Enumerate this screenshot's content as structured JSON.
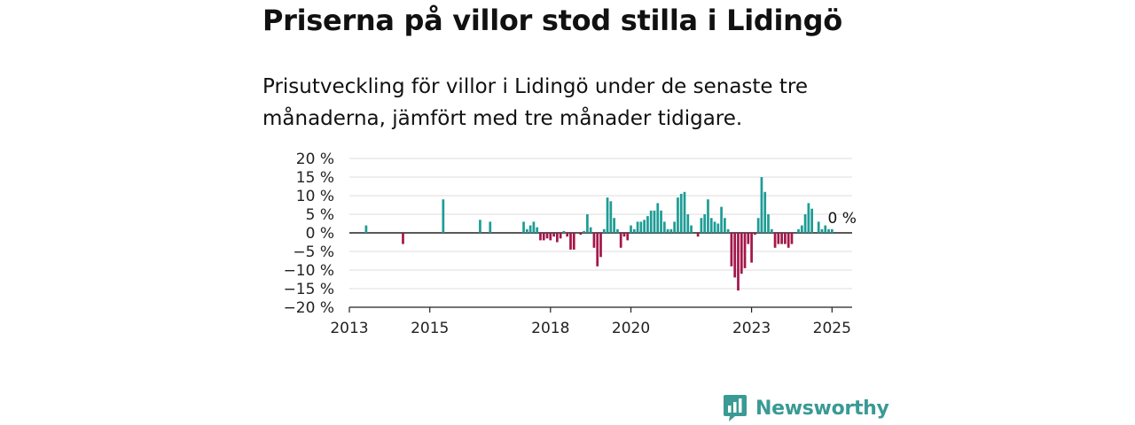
{
  "title": "Priserna på villor stod stilla i Lidingö",
  "subtitle": "Prisutveckling för villor i Lidingö under de senaste tre månaderna, jämfört med tre månader tidigare.",
  "brand": {
    "name": "Newsworthy",
    "color": "#3a9a94"
  },
  "colors": {
    "positive": "#1e9c96",
    "negative": "#a3174a",
    "grid": "#dddddd",
    "zero": "#222222"
  },
  "chart_data": {
    "type": "bar",
    "ylim": [
      -20,
      20
    ],
    "y_ticks": [
      20,
      15,
      10,
      5,
      0,
      -5,
      -10,
      -15,
      -20
    ],
    "y_tick_labels": [
      "20 %",
      "15 %",
      "10 %",
      "5 %",
      "0 %",
      "−5 %",
      "−10 %",
      "−15 %",
      "−20 %"
    ],
    "x_range": [
      "2013-01",
      "2025-07"
    ],
    "x_ticks": [
      "2013-01",
      "2015-01",
      "2018-01",
      "2020-01",
      "2023-01",
      "2025-01"
    ],
    "x_tick_labels": [
      "2013",
      "2015",
      "2018",
      "2020",
      "2023",
      "2025"
    ],
    "end_label": "0 %",
    "end_label_month": "2025-04",
    "bars": [
      {
        "month": "2013-06",
        "value": 2
      },
      {
        "month": "2014-05",
        "value": -3
      },
      {
        "month": "2015-05",
        "value": 9
      },
      {
        "month": "2016-04",
        "value": 3.5
      },
      {
        "month": "2016-07",
        "value": 3
      },
      {
        "month": "2017-05",
        "value": 3
      },
      {
        "month": "2017-06",
        "value": 1
      },
      {
        "month": "2017-07",
        "value": 2
      },
      {
        "month": "2017-08",
        "value": 3
      },
      {
        "month": "2017-09",
        "value": 1.5
      },
      {
        "month": "2017-10",
        "value": -2
      },
      {
        "month": "2017-11",
        "value": -2
      },
      {
        "month": "2017-12",
        "value": -1.5
      },
      {
        "month": "2018-01",
        "value": -2
      },
      {
        "month": "2018-02",
        "value": -1
      },
      {
        "month": "2018-03",
        "value": -2.5
      },
      {
        "month": "2018-04",
        "value": -1.5
      },
      {
        "month": "2018-05",
        "value": 0.5
      },
      {
        "month": "2018-06",
        "value": -1
      },
      {
        "month": "2018-07",
        "value": -4.5
      },
      {
        "month": "2018-08",
        "value": -4.5
      },
      {
        "month": "2018-09",
        "value": 0
      },
      {
        "month": "2018-10",
        "value": -0.5
      },
      {
        "month": "2018-11",
        "value": 0.5
      },
      {
        "month": "2018-12",
        "value": 5
      },
      {
        "month": "2019-01",
        "value": 1.5
      },
      {
        "month": "2019-02",
        "value": -4
      },
      {
        "month": "2019-03",
        "value": -9
      },
      {
        "month": "2019-04",
        "value": -6.5
      },
      {
        "month": "2019-05",
        "value": 1
      },
      {
        "month": "2019-06",
        "value": 9.5
      },
      {
        "month": "2019-07",
        "value": 8.5
      },
      {
        "month": "2019-08",
        "value": 4
      },
      {
        "month": "2019-09",
        "value": 1
      },
      {
        "month": "2019-10",
        "value": -4
      },
      {
        "month": "2019-11",
        "value": -1
      },
      {
        "month": "2019-12",
        "value": -2
      },
      {
        "month": "2020-01",
        "value": 2
      },
      {
        "month": "2020-02",
        "value": 1
      },
      {
        "month": "2020-03",
        "value": 3
      },
      {
        "month": "2020-04",
        "value": 3
      },
      {
        "month": "2020-05",
        "value": 3.5
      },
      {
        "month": "2020-06",
        "value": 4.5
      },
      {
        "month": "2020-07",
        "value": 6
      },
      {
        "month": "2020-08",
        "value": 6
      },
      {
        "month": "2020-09",
        "value": 8
      },
      {
        "month": "2020-10",
        "value": 6
      },
      {
        "month": "2020-11",
        "value": 3
      },
      {
        "month": "2020-12",
        "value": 1
      },
      {
        "month": "2021-01",
        "value": 1
      },
      {
        "month": "2021-02",
        "value": 3
      },
      {
        "month": "2021-03",
        "value": 9.5
      },
      {
        "month": "2021-04",
        "value": 10.5
      },
      {
        "month": "2021-05",
        "value": 11
      },
      {
        "month": "2021-06",
        "value": 5
      },
      {
        "month": "2021-07",
        "value": 2
      },
      {
        "month": "2021-09",
        "value": -1
      },
      {
        "month": "2021-10",
        "value": 4
      },
      {
        "month": "2021-11",
        "value": 5
      },
      {
        "month": "2021-12",
        "value": 9
      },
      {
        "month": "2022-01",
        "value": 4
      },
      {
        "month": "2022-02",
        "value": 3
      },
      {
        "month": "2022-03",
        "value": 2.5
      },
      {
        "month": "2022-04",
        "value": 7
      },
      {
        "month": "2022-05",
        "value": 4
      },
      {
        "month": "2022-06",
        "value": 1
      },
      {
        "month": "2022-07",
        "value": -9
      },
      {
        "month": "2022-08",
        "value": -12
      },
      {
        "month": "2022-09",
        "value": -15.5
      },
      {
        "month": "2022-10",
        "value": -11
      },
      {
        "month": "2022-11",
        "value": -9.5
      },
      {
        "month": "2022-12",
        "value": -3
      },
      {
        "month": "2023-01",
        "value": -8
      },
      {
        "month": "2023-02",
        "value": -0.5
      },
      {
        "month": "2023-03",
        "value": 4
      },
      {
        "month": "2023-04",
        "value": 15
      },
      {
        "month": "2023-05",
        "value": 11
      },
      {
        "month": "2023-06",
        "value": 5
      },
      {
        "month": "2023-07",
        "value": 1
      },
      {
        "month": "2023-08",
        "value": -4
      },
      {
        "month": "2023-09",
        "value": -3
      },
      {
        "month": "2023-10",
        "value": -3
      },
      {
        "month": "2023-11",
        "value": -3
      },
      {
        "month": "2023-12",
        "value": -4
      },
      {
        "month": "2024-01",
        "value": -3
      },
      {
        "month": "2024-02",
        "value": 0
      },
      {
        "month": "2024-03",
        "value": 1
      },
      {
        "month": "2024-04",
        "value": 2
      },
      {
        "month": "2024-05",
        "value": 5
      },
      {
        "month": "2024-06",
        "value": 8
      },
      {
        "month": "2024-07",
        "value": 6.5
      },
      {
        "month": "2024-08",
        "value": 0
      },
      {
        "month": "2024-09",
        "value": 3
      },
      {
        "month": "2024-10",
        "value": 1
      },
      {
        "month": "2024-11",
        "value": 2
      },
      {
        "month": "2024-12",
        "value": 1
      },
      {
        "month": "2025-01",
        "value": 1
      }
    ]
  }
}
